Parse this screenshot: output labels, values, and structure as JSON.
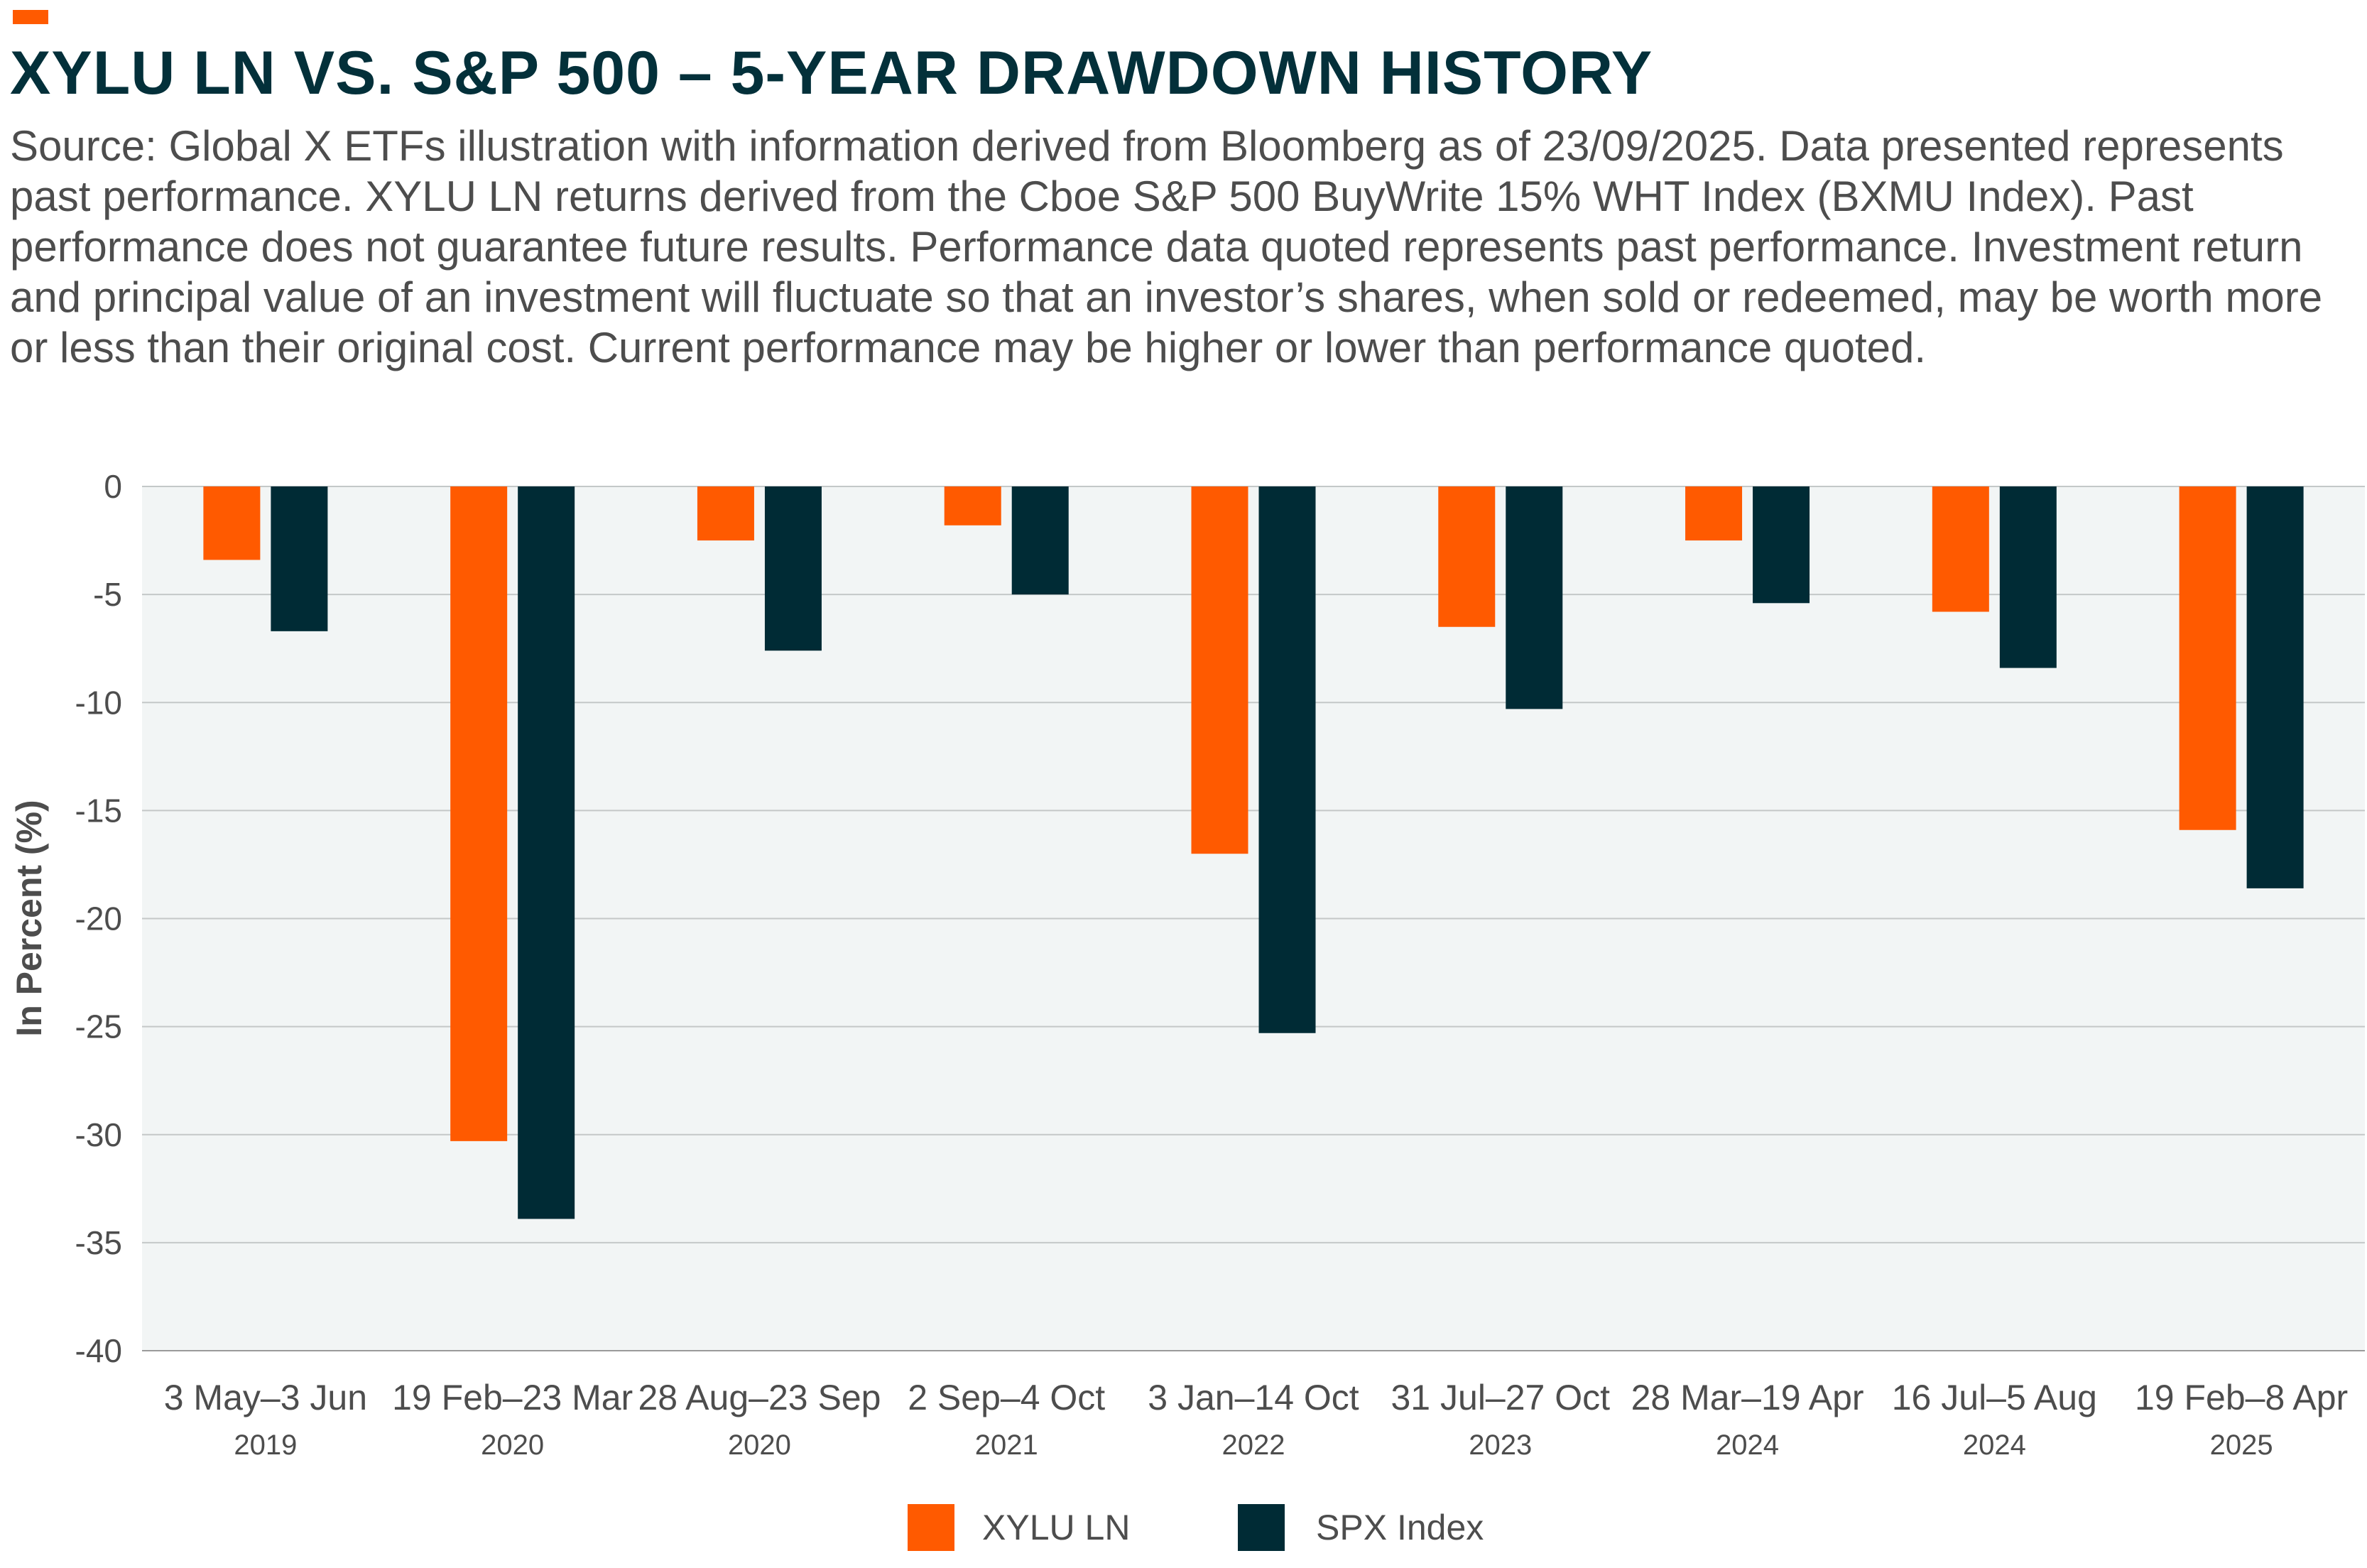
{
  "title": "XYLU LN VS. S&P 500 – 5-YEAR DRAWDOWN HISTORY",
  "subtitle": "Source: Global X ETFs illustration with information derived from Bloomberg as of 23/09/2025. Data presented represents past performance. XYLU LN returns derived from the Cboe S&P 500 BuyWrite 15% WHT Index (BXMU Index). Past performance does not guarantee future results. Performance data quoted represents past performance. Investment return and principal value of an investment will fluctuate so that an investor’s shares, when sold or redeemed, may be worth more or less than their original cost. Current performance may be higher or lower than performance quoted.",
  "chart_data": {
    "type": "bar",
    "title": "XYLU LN VS. S&P 500 – 5-YEAR DRAWDOWN HISTORY",
    "xlabel": "",
    "ylabel": "In Percent (%)",
    "ylim": [
      -40,
      0
    ],
    "yticks": [
      0,
      -5,
      -10,
      -15,
      -20,
      -25,
      -30,
      -35,
      -40
    ],
    "grid": true,
    "legend_position": "bottom-center",
    "categories": [
      "3 May–3 Jun",
      "19 Feb–23 Mar",
      "28 Aug–23 Sep",
      "2 Sep–4 Oct",
      "3 Jan–14 Oct",
      "31 Jul–27 Oct",
      "28 Mar–19 Apr",
      "16 Jul–5 Aug",
      "19 Feb–8 Apr"
    ],
    "years": [
      "2019",
      "2020",
      "2020",
      "2021",
      "2022",
      "2023",
      "2024",
      "2024",
      "2025"
    ],
    "series": [
      {
        "name": "XYLU LN",
        "color": "#ff5a00",
        "values": [
          -3.4,
          -30.3,
          -2.5,
          -1.8,
          -17.0,
          -6.5,
          -2.5,
          -5.8,
          -15.9
        ]
      },
      {
        "name": "SPX Index",
        "color": "#002b35",
        "values": [
          -6.7,
          -33.9,
          -7.6,
          -5.0,
          -25.3,
          -10.3,
          -5.4,
          -8.4,
          -18.6
        ]
      }
    ]
  }
}
